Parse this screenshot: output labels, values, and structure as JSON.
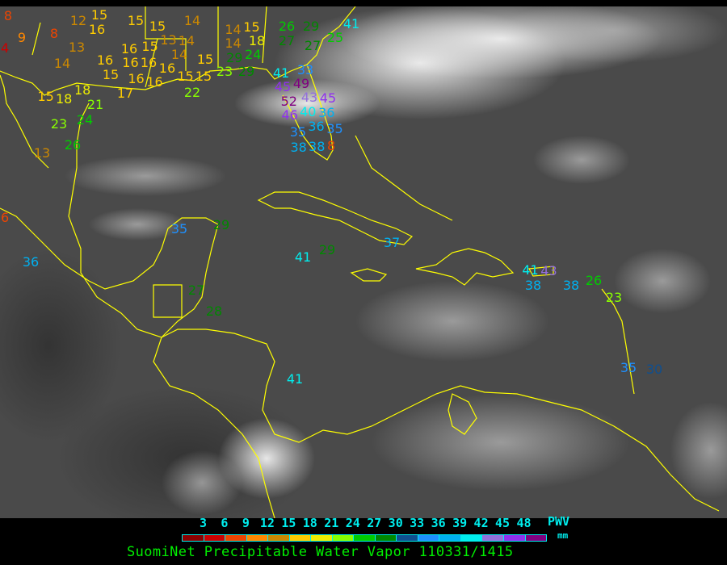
{
  "legend": {
    "ticks": [
      "3",
      "6",
      "9",
      "12",
      "15",
      "18",
      "21",
      "24",
      "27",
      "30",
      "33",
      "36",
      "39",
      "42",
      "45",
      "48"
    ],
    "colors": [
      "#8b0000",
      "#cc0000",
      "#ee4400",
      "#ff8800",
      "#cc8800",
      "#ffcc00",
      "#eeee00",
      "#88ff00",
      "#00cc00",
      "#008800",
      "#0f4f8f",
      "#1e90ff",
      "#00b0f0",
      "#00eeee",
      "#9370db",
      "#9030ee",
      "#800080"
    ],
    "quantity": "PWV",
    "unit": "mm"
  },
  "title": "SuomiNet Precipitable Water Vapor 110331/1415",
  "colors": {
    "coastline": "#ffff00",
    "background": "#4a4a4a",
    "cloud": "#e8e8e8"
  },
  "stations": [
    8,
    12,
    15,
    16,
    15,
    15,
    14,
    8,
    9,
    4,
    13,
    14,
    16,
    16,
    16,
    16,
    16,
    15,
    13,
    14,
    14,
    15,
    15,
    16,
    16,
    15,
    15,
    22,
    23,
    29,
    17,
    15,
    18,
    18,
    21,
    23,
    24,
    26,
    13,
    14,
    15,
    14,
    18,
    24,
    29,
    26,
    29,
    27,
    27,
    25,
    41,
    33,
    41,
    45,
    49,
    52,
    43,
    45,
    46,
    40,
    36,
    36,
    35,
    35,
    38,
    38,
    8,
    6,
    36,
    35,
    29,
    41,
    29,
    37,
    27,
    28,
    41,
    41,
    43,
    38,
    38,
    26,
    23,
    35,
    30
  ]
}
